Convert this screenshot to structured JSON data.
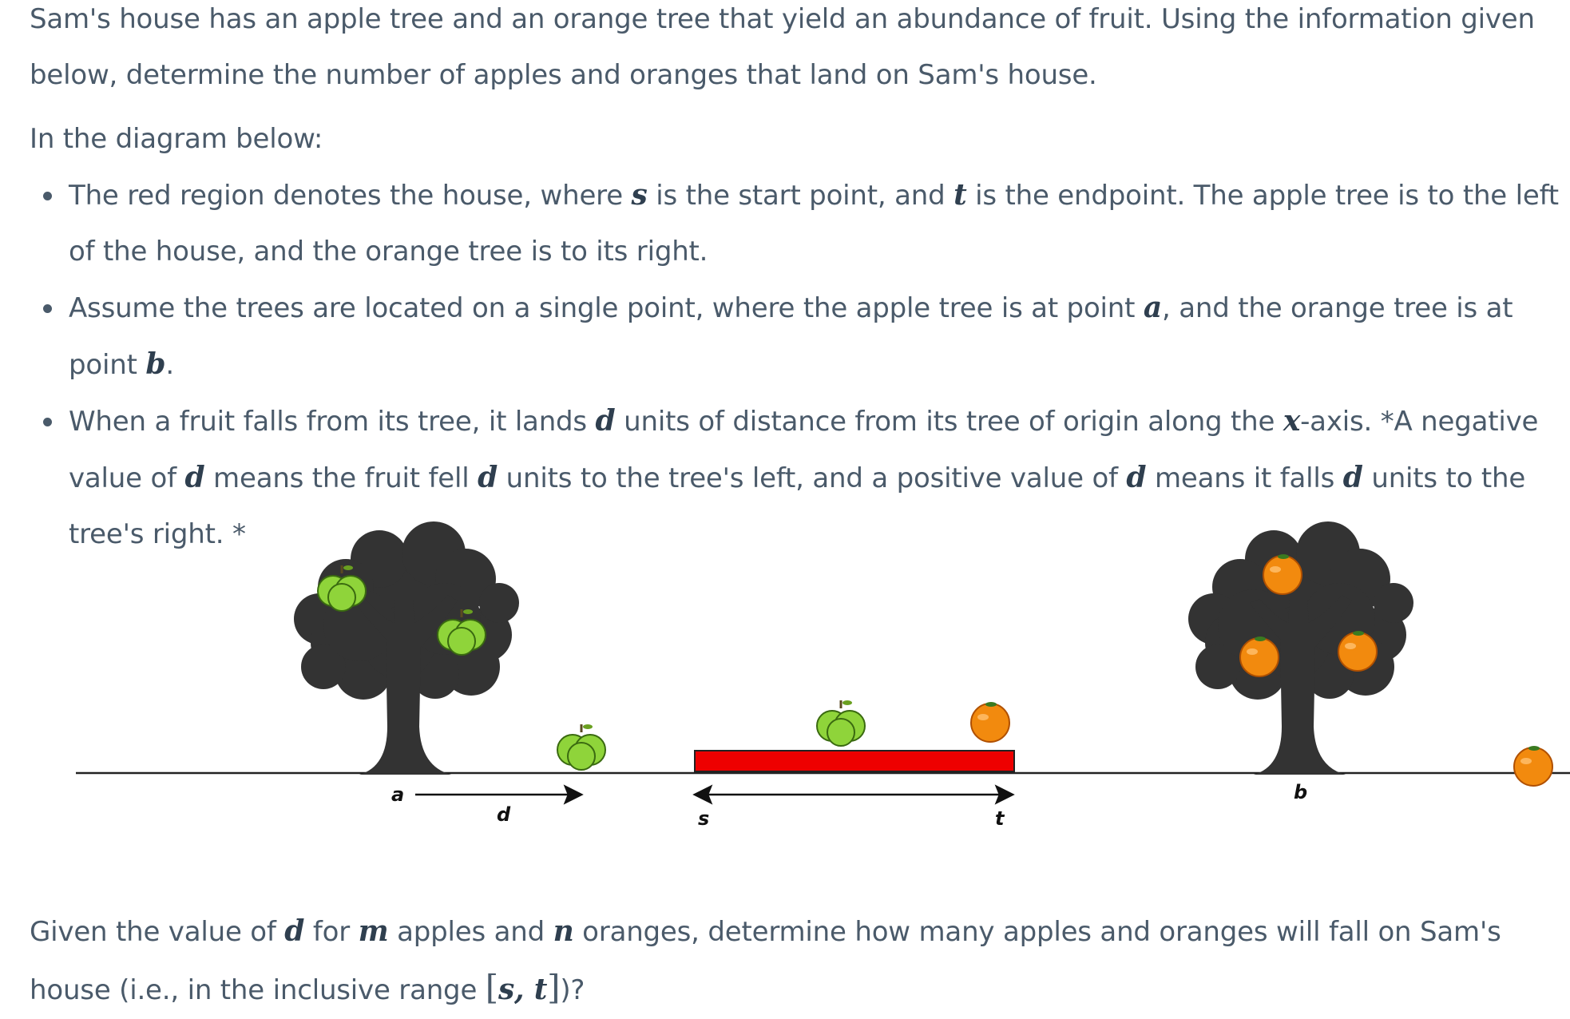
{
  "intro": {
    "text": "Sam's house has an apple tree and an orange tree that yield an abundance of fruit. Using the information given below, determine the number of apples and oranges that land on Sam's house."
  },
  "lead": "In the diagram below:",
  "bullets": [
    {
      "p1": "The red region denotes the house, where ",
      "v1": "s",
      "p2": " is the start point, and ",
      "v2": "t",
      "p3": " is the endpoint. The apple tree is to the left of the house, and the orange tree is to its right."
    },
    {
      "p1": "Assume the trees are located on a single point, where the apple tree is at point ",
      "v1": "a",
      "p2": ", and the orange tree is at point ",
      "v2": "b",
      "p3": "."
    },
    {
      "p1": "When a fruit falls from its tree, it lands ",
      "v1": "d",
      "p2": " units of distance from its tree of origin along the ",
      "v2": "x",
      "p3": "-axis. *A negative value of ",
      "v3": "d",
      "p4": " means the fruit fell ",
      "v4": "d",
      "p5": " units to the tree's left, and a positive value of ",
      "v5": "d",
      "p6": " means it falls ",
      "v6": "d",
      "p7": " units to the tree's right. *"
    }
  ],
  "diagram": {
    "labels": {
      "a": "a",
      "d": "d",
      "s": "s",
      "t": "t",
      "b": "b"
    },
    "colors": {
      "house": "#ee0000",
      "tree": "#333333",
      "apple": "#8fd43a",
      "orange": "#f28a0e",
      "line": "#222222"
    }
  },
  "question": {
    "p1": "Given the value of ",
    "v1": "d",
    "p2": " for ",
    "v2": "m",
    "p3": " apples and ",
    "v3": "n",
    "p4": " oranges, determine how many apples and oranges will fall on Sam's house (i.e., in the inclusive range ",
    "b1": "[",
    "v4": "s",
    "comma": ", ",
    "v5": "t",
    "b2": "]",
    "p5": ")?"
  }
}
